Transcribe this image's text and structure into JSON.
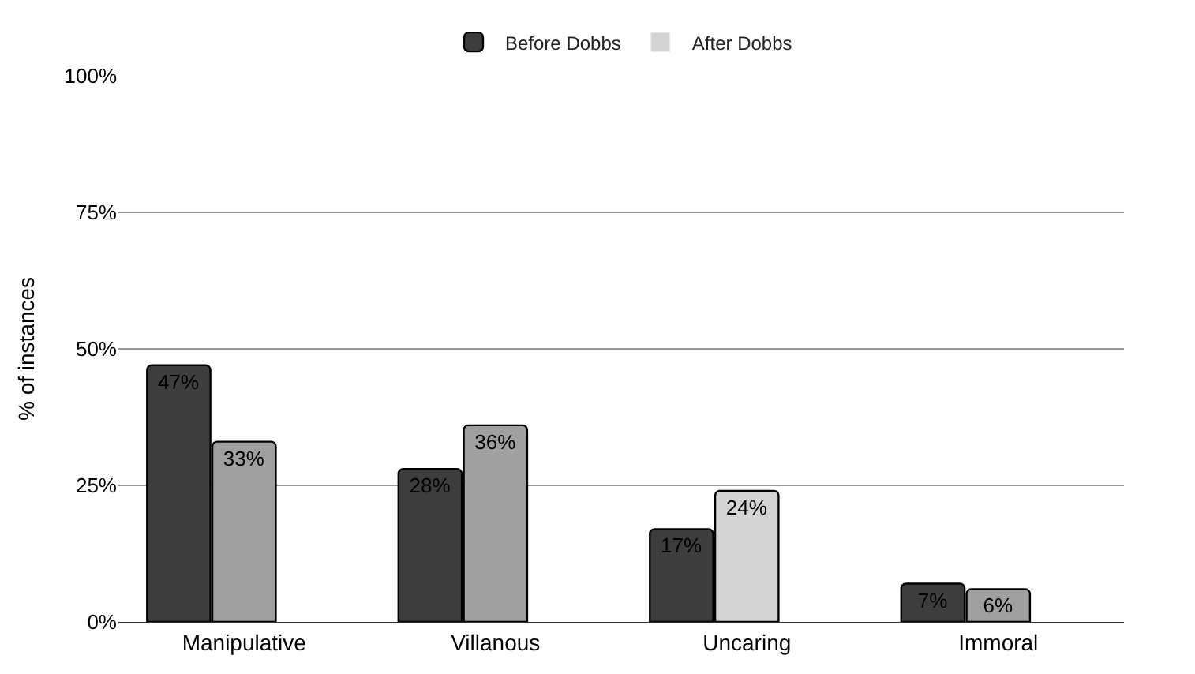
{
  "chart_data": {
    "type": "bar",
    "ylabel": "% of instances",
    "categories": [
      "Manipulative",
      "Villanous",
      "Uncaring",
      "Immoral"
    ],
    "series": [
      {
        "name": "Before Dobbs",
        "color": "#3d3d3d",
        "values": [
          47,
          28,
          17,
          7
        ],
        "value_labels": [
          "47%",
          "28%",
          "17%",
          "7%"
        ]
      },
      {
        "name": "After Dobbs",
        "color": "#d4d4d4",
        "colors": [
          "#a0a0a0",
          "#a0a0a0",
          "#d4d4d4",
          "#a0a0a0"
        ],
        "values": [
          33,
          36,
          24,
          6
        ],
        "value_labels": [
          "33%",
          "36%",
          "24%",
          "6%"
        ]
      }
    ],
    "ylim": [
      0,
      100
    ],
    "yticks": [
      {
        "value": 0,
        "label": "0%"
      },
      {
        "value": 25,
        "label": "25%"
      },
      {
        "value": 50,
        "label": "50%"
      },
      {
        "value": 75,
        "label": "75%"
      },
      {
        "value": 100,
        "label": "100%"
      }
    ],
    "grid": "y",
    "legend": "top"
  }
}
